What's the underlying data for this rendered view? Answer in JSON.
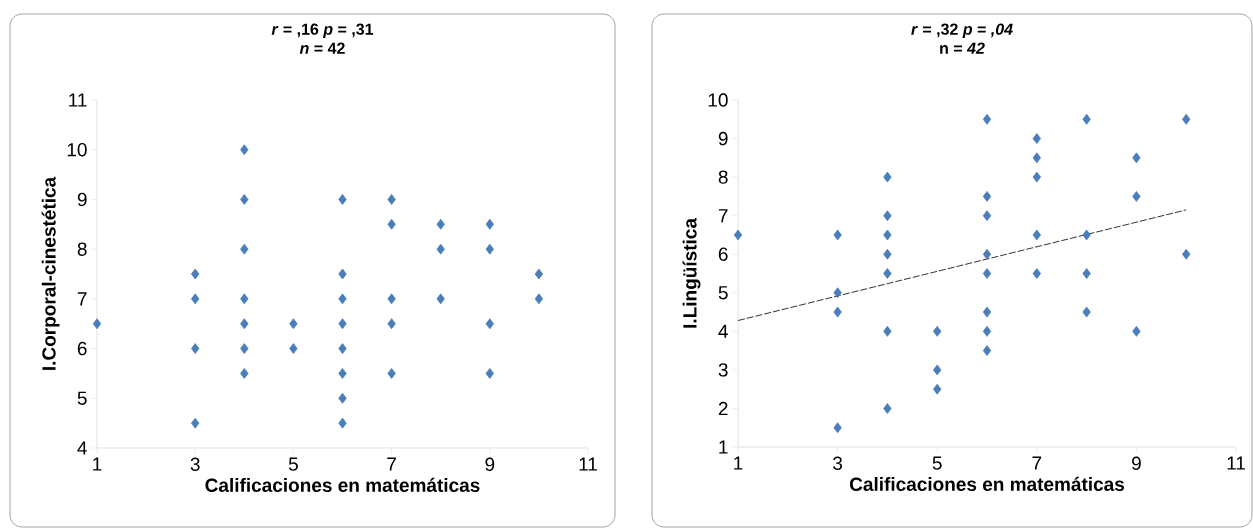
{
  "chart_data": [
    {
      "type": "scatter",
      "title": "*r* = ,16     *p* = ,31",
      "subtitle": "*n* = 42",
      "xlabel": "Calificaciones en matemáticas",
      "ylabel": "I.Corporal-cinestética",
      "marker": "diamond",
      "series": [
        {
          "color": "#4a7ebb",
          "x": [
            1,
            3,
            3,
            3,
            3,
            4,
            4,
            4,
            4,
            4,
            4,
            4,
            5,
            5,
            6,
            6,
            6,
            6,
            6,
            6,
            6,
            6,
            7,
            7,
            7,
            7,
            7,
            8,
            8,
            8,
            9,
            9,
            9,
            9,
            10,
            10
          ],
          "values": [
            6.5,
            7.5,
            7,
            6,
            4.5,
            10,
            9,
            8,
            7,
            6.5,
            6,
            5.5,
            6.5,
            6,
            9,
            7.5,
            7,
            6.5,
            6,
            5.5,
            5,
            4.5,
            9,
            8.5,
            7,
            6.5,
            5.5,
            8.5,
            8,
            7,
            8.5,
            8,
            6.5,
            5.5,
            7.5,
            7
          ]
        }
      ],
      "xlim": [
        1,
        11
      ],
      "ylim": [
        4,
        11
      ],
      "xticks": [
        1,
        3,
        5,
        7,
        9,
        11
      ],
      "yticks": [
        4,
        5,
        6,
        7,
        8,
        9,
        10,
        11
      ]
    },
    {
      "type": "scatter",
      "title": "*r* = ,32     *p* = *,04*",
      "subtitle": "n = *42*",
      "xlabel": "Calificaciones en matemáticas",
      "ylabel": "I.Lingüística",
      "marker": "diamond",
      "series": [
        {
          "color": "#4a7ebb",
          "x": [
            1,
            3,
            3,
            3,
            3,
            4,
            4,
            4,
            4,
            4,
            4,
            4,
            5,
            5,
            5,
            6,
            6,
            6,
            6,
            6,
            6,
            6,
            6,
            7,
            7,
            7,
            7,
            7,
            8,
            8,
            8,
            8,
            9,
            9,
            9,
            10,
            10
          ],
          "values": [
            6.5,
            6.5,
            5,
            4.5,
            1.5,
            8,
            7,
            6.5,
            6,
            5.5,
            4,
            2,
            4,
            3,
            2.5,
            9.5,
            7.5,
            7,
            6,
            5.5,
            4.5,
            4,
            3.5,
            9,
            8.5,
            8,
            6.5,
            5.5,
            9.5,
            6.5,
            5.5,
            4.5,
            8.5,
            7.5,
            4,
            9.5,
            6
          ]
        },
        {
          "type": "line",
          "color": "#000000",
          "line_style": "dashed",
          "marker": "none",
          "x": [
            1,
            10
          ],
          "values": [
            4.28,
            7.15
          ]
        }
      ],
      "xlim": [
        1,
        11
      ],
      "ylim": [
        1,
        10
      ],
      "xticks": [
        1,
        3,
        5,
        7,
        9,
        11
      ],
      "yticks": [
        1,
        2,
        3,
        4,
        5,
        6,
        7,
        8,
        9,
        10
      ]
    }
  ]
}
